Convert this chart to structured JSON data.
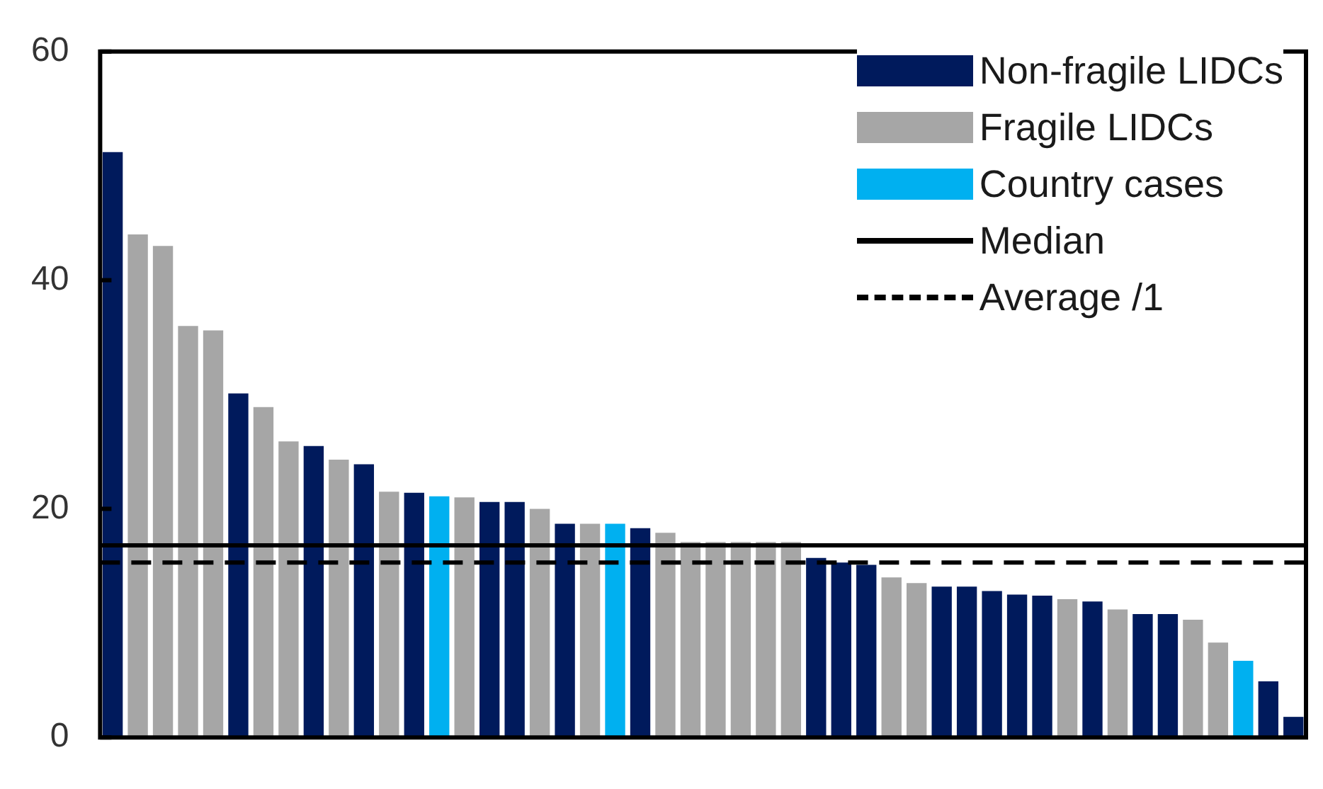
{
  "chart_data": {
    "type": "bar",
    "categories": [
      null,
      null,
      null,
      null,
      null,
      null,
      null,
      null,
      null,
      null,
      null,
      null,
      null,
      null,
      null,
      null,
      null,
      null,
      null,
      null,
      null,
      null,
      null,
      null,
      null,
      null,
      null,
      null,
      null,
      null,
      null,
      null,
      null,
      null,
      null,
      null,
      null,
      null,
      null,
      null,
      null,
      null,
      null,
      null,
      null,
      null,
      null,
      null
    ],
    "series": [
      {
        "name": "Non-fragile LIDCs",
        "color": "#001a5c",
        "values": [
          51.2,
          null,
          null,
          null,
          null,
          30.1,
          null,
          null,
          25.5,
          null,
          23.9,
          null,
          21.4,
          null,
          null,
          20.6,
          20.6,
          null,
          18.7,
          null,
          null,
          18.3,
          null,
          null,
          null,
          null,
          null,
          null,
          15.7,
          15.3,
          15.1,
          null,
          null,
          13.2,
          13.2,
          12.8,
          12.5,
          12.4,
          null,
          11.9,
          null,
          10.8,
          10.8,
          null,
          null,
          null,
          4.9,
          1.8
        ]
      },
      {
        "name": "Fragile LIDCs",
        "color": "#a6a6a6",
        "values": [
          null,
          44.0,
          43.0,
          36.0,
          35.6,
          null,
          28.9,
          25.9,
          null,
          24.3,
          null,
          21.5,
          null,
          null,
          21.0,
          null,
          null,
          20.0,
          null,
          18.7,
          null,
          null,
          17.9,
          17.1,
          17.1,
          17.1,
          17.1,
          17.1,
          null,
          null,
          null,
          14.0,
          13.5,
          null,
          null,
          null,
          null,
          null,
          12.1,
          null,
          11.2,
          null,
          null,
          10.3,
          8.3,
          null,
          null,
          null
        ]
      },
      {
        "name": "Country cases",
        "color": "#00b0f0",
        "values": [
          null,
          null,
          null,
          null,
          null,
          null,
          null,
          null,
          null,
          null,
          null,
          null,
          null,
          21.1,
          null,
          null,
          null,
          null,
          null,
          null,
          18.7,
          null,
          null,
          null,
          null,
          null,
          null,
          null,
          null,
          null,
          null,
          null,
          null,
          null,
          null,
          null,
          null,
          null,
          null,
          null,
          null,
          null,
          null,
          null,
          null,
          6.7,
          null,
          null
        ]
      }
    ],
    "ref_lines": [
      {
        "axis": "y",
        "value": 16.8,
        "label": "Median",
        "color": "#000000",
        "line_style": "solid"
      },
      {
        "axis": "y",
        "value": 15.3,
        "label": "Average /1",
        "color": "#000000",
        "line_style": "dashed"
      }
    ],
    "ylim": [
      0,
      60
    ],
    "yticks": [
      0,
      20,
      40,
      60
    ],
    "grid": false,
    "legend": "top right"
  }
}
